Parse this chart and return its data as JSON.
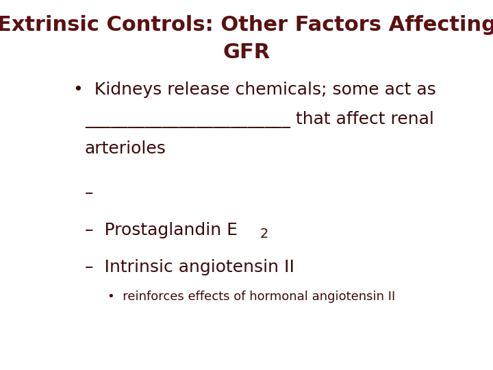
{
  "title_line1": "Extrinsic Controls: Other Factors Affecting",
  "title_line2": "GFR",
  "title_color": "#5c1010",
  "title_fontsize": 22,
  "body_color": "#3b0a0a",
  "background_color": "#ffffff",
  "bullet1_line1": "Kidneys release chemicals; some act as",
  "bullet1_line2_blank": "________________________",
  "bullet1_line2_suffix": " that affect renal",
  "bullet1_line3": "arterioles",
  "dash1": "–",
  "dash2_text": "–  Prostaglandin E",
  "dash2_sub": "2",
  "dash3_text": "–  Intrinsic angiotensin II",
  "sub_bullet": "•  reinforces effects of hormonal angiotensin II",
  "body_fontsize": 18,
  "sub_fontsize": 13
}
